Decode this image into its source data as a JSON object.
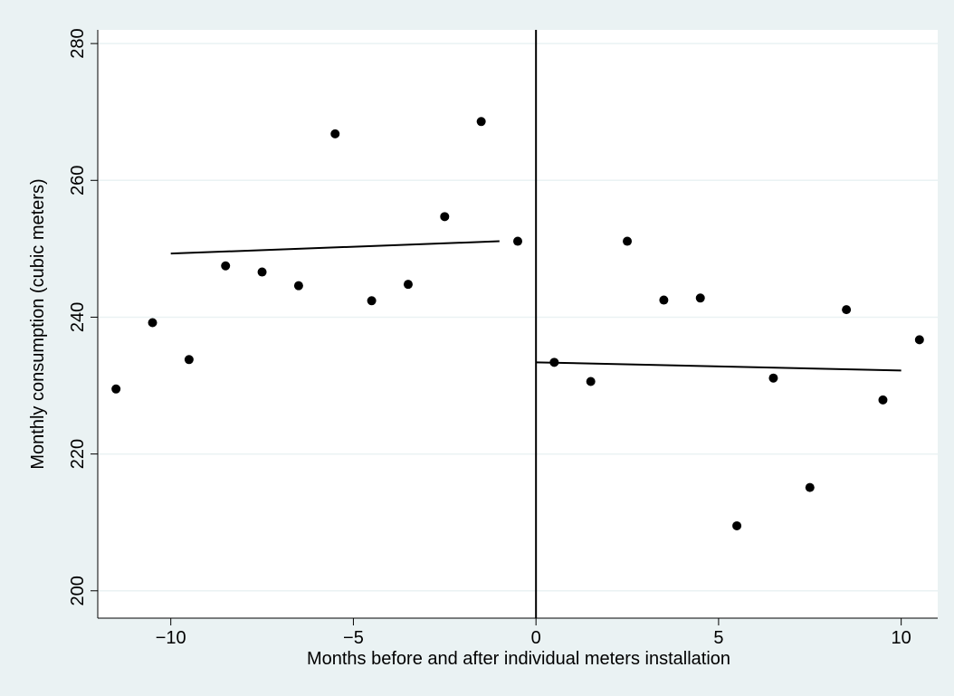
{
  "chart_data": {
    "type": "scatter",
    "x_label": "Months before and after individual meters installation",
    "y_label": "Monthly consumption (cubic meters)",
    "x": [
      -11.5,
      -10.5,
      -9.5,
      -8.5,
      -7.5,
      -6.5,
      -5.5,
      -4.5,
      -3.5,
      -2.5,
      -1.5,
      -0.5,
      0.5,
      1.5,
      2.5,
      3.5,
      4.5,
      5.5,
      6.5,
      7.5,
      8.5,
      9.5,
      10.5
    ],
    "values": [
      229.5,
      239.2,
      233.8,
      247.5,
      246.6,
      244.6,
      266.8,
      242.4,
      244.8,
      254.7,
      268.6,
      251.1,
      233.4,
      230.6,
      251.1,
      242.5,
      242.8,
      209.5,
      231.1,
      215.1,
      241.1,
      227.9,
      236.7
    ],
    "color": "#000000",
    "fit_lines": [
      {
        "x": [
          -10,
          -1
        ],
        "values": [
          249.3,
          251.1
        ]
      },
      {
        "x": [
          0,
          10
        ],
        "values": [
          233.4,
          232.2
        ]
      }
    ],
    "xline": 0,
    "xlim": [
      -12,
      11
    ],
    "ylim": [
      196,
      282
    ],
    "xticks": [
      {
        "value": -10,
        "label": "−10"
      },
      {
        "value": -5,
        "label": "−5"
      },
      0,
      5,
      10
    ],
    "yticks": [
      200,
      220,
      240,
      260,
      280
    ],
    "grid": true
  }
}
